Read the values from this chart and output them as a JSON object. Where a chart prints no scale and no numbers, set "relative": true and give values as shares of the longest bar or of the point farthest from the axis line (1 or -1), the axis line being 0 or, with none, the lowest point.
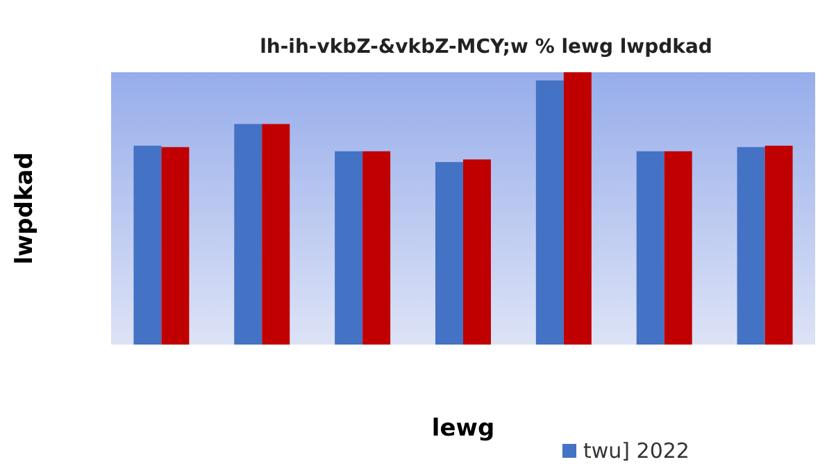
{
  "chart_data": {
    "type": "bar",
    "title": "lh-ih-vkbZ-&vkbZ-MCY;w % lewg lwpdkad",
    "xlabel": "lewg",
    "ylabel": "lwpdkad",
    "relative": true,
    "categories": [
      null,
      null,
      null,
      null,
      null,
      null,
      null
    ],
    "series": [
      {
        "name": "twu] 2022",
        "color": "#4472c4",
        "values": [
          0.73,
          0.81,
          0.71,
          0.67,
          0.97,
          0.71,
          0.725
        ]
      },
      {
        "color": "#c00000",
        "values": [
          0.725,
          0.81,
          0.71,
          0.68,
          1,
          0.71,
          0.73
        ]
      }
    ],
    "legend": "bottom"
  }
}
